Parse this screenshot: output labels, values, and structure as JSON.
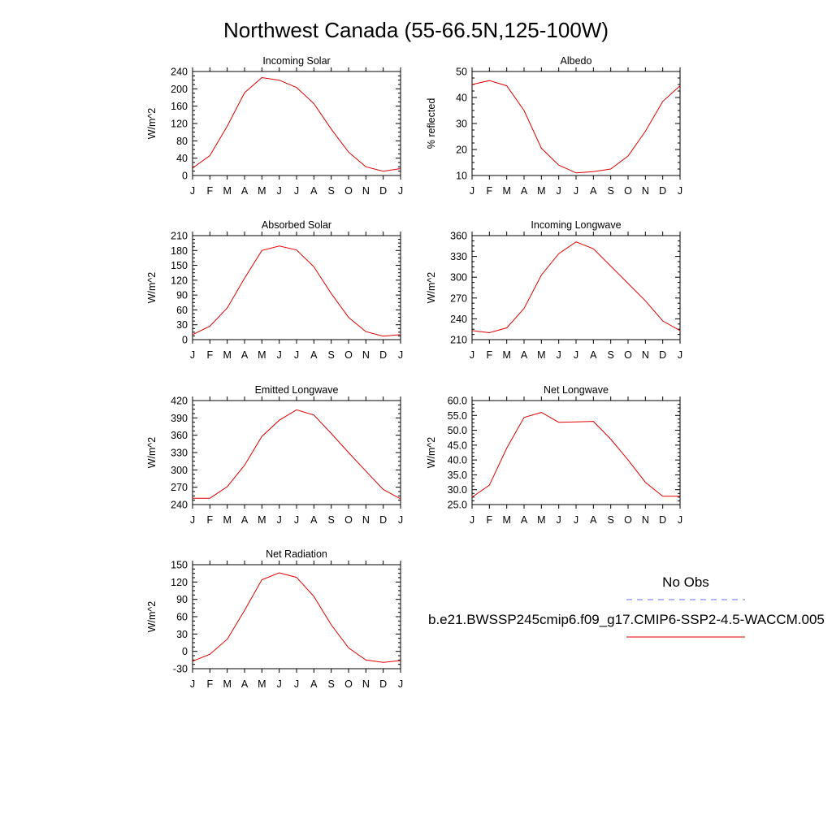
{
  "page_title": "Northwest Canada (55-66.5N,125-100W)",
  "legend": {
    "obs_label": "No Obs",
    "model_label": "b.e21.BWSSP245cmip6.f09_g17.CMIP6-SSP2-4.5-WACCM.005",
    "obs_color": "#6a6af0",
    "model_color": "#e00000"
  },
  "chart_data": [
    {
      "type": "line",
      "title": "Incoming Solar",
      "ylabel": "W/m^2",
      "ylim": [
        0,
        240
      ],
      "yticks": [
        0,
        40,
        80,
        120,
        160,
        200,
        240
      ],
      "ytick_labels": [
        "0",
        "40",
        "80",
        "120",
        "160",
        "200",
        "240"
      ],
      "categories": [
        "J",
        "F",
        "M",
        "A",
        "M",
        "J",
        "J",
        "A",
        "S",
        "O",
        "N",
        "D",
        "J"
      ],
      "series": [
        {
          "values": [
            17,
            46,
            114,
            191,
            226,
            220,
            203,
            166,
            107,
            54,
            20,
            10,
            16
          ]
        }
      ]
    },
    {
      "type": "line",
      "title": "Albedo",
      "ylabel": "% reflected",
      "ylim": [
        10,
        50
      ],
      "yticks": [
        10,
        20,
        30,
        40,
        50
      ],
      "ytick_labels": [
        "10",
        "20",
        "30",
        "40",
        "50"
      ],
      "categories": [
        "J",
        "F",
        "M",
        "A",
        "M",
        "J",
        "J",
        "A",
        "S",
        "O",
        "N",
        "D",
        "J"
      ],
      "series": [
        {
          "values": [
            45,
            46.5,
            44.5,
            35,
            20.5,
            14,
            11,
            11.5,
            12.5,
            17.5,
            27,
            38.5,
            44.5
          ]
        }
      ]
    },
    {
      "type": "line",
      "title": "Absorbed Solar",
      "ylabel": "W/m^2",
      "ylim": [
        0,
        210
      ],
      "yticks": [
        0,
        30,
        60,
        90,
        120,
        150,
        180,
        210
      ],
      "ytick_labels": [
        "0",
        "30",
        "60",
        "90",
        "120",
        "150",
        "180",
        "210"
      ],
      "categories": [
        "J",
        "F",
        "M",
        "A",
        "M",
        "J",
        "J",
        "A",
        "S",
        "O",
        "N",
        "D",
        "J"
      ],
      "series": [
        {
          "values": [
            10,
            27,
            64,
            124,
            180,
            189,
            181,
            147,
            93,
            45,
            16,
            7,
            10
          ]
        }
      ]
    },
    {
      "type": "line",
      "title": "Incoming Longwave",
      "ylabel": "W/m^2",
      "ylim": [
        210,
        360
      ],
      "yticks": [
        210,
        240,
        270,
        300,
        330,
        360
      ],
      "ytick_labels": [
        "210",
        "240",
        "270",
        "300",
        "330",
        "360"
      ],
      "categories": [
        "J",
        "F",
        "M",
        "A",
        "M",
        "J",
        "J",
        "A",
        "S",
        "O",
        "N",
        "D",
        "J"
      ],
      "series": [
        {
          "values": [
            223,
            220,
            227,
            255,
            303,
            334,
            351,
            341,
            316,
            291,
            266,
            237,
            223
          ]
        }
      ]
    },
    {
      "type": "line",
      "title": "Emitted Longwave",
      "ylabel": "W/m^2",
      "ylim": [
        240,
        420
      ],
      "yticks": [
        240,
        270,
        300,
        330,
        360,
        390,
        420
      ],
      "ytick_labels": [
        "240",
        "270",
        "300",
        "330",
        "360",
        "390",
        "420"
      ],
      "categories": [
        "J",
        "F",
        "M",
        "A",
        "M",
        "J",
        "J",
        "A",
        "S",
        "O",
        "N",
        "D",
        "J"
      ],
      "series": [
        {
          "values": [
            251,
            251,
            271,
            308,
            358,
            386,
            404,
            395,
            363,
            330,
            298,
            266,
            250
          ]
        }
      ]
    },
    {
      "type": "line",
      "title": "Net Longwave",
      "ylabel": "W/m^2",
      "ylim": [
        25,
        60
      ],
      "yticks": [
        25,
        30,
        35,
        40,
        45,
        50,
        55,
        60
      ],
      "ytick_labels": [
        "25.0",
        "30.0",
        "35.0",
        "40.0",
        "45.0",
        "50.0",
        "55.0",
        "60.0"
      ],
      "categories": [
        "J",
        "F",
        "M",
        "A",
        "M",
        "J",
        "J",
        "A",
        "S",
        "O",
        "N",
        "D",
        "J"
      ],
      "series": [
        {
          "values": [
            27.5,
            31.5,
            44,
            54.3,
            56,
            52.7,
            52.8,
            53,
            47,
            40,
            32.5,
            27.8,
            27.8
          ]
        }
      ]
    },
    {
      "type": "line",
      "title": "Net Radiation",
      "ylabel": "W/m^2",
      "ylim": [
        -30,
        150
      ],
      "yticks": [
        -30,
        0,
        30,
        60,
        90,
        120,
        150
      ],
      "ytick_labels": [
        "-30",
        "0",
        "30",
        "60",
        "90",
        "120",
        "150"
      ],
      "categories": [
        "J",
        "F",
        "M",
        "A",
        "M",
        "J",
        "J",
        "A",
        "S",
        "O",
        "N",
        "D",
        "J"
      ],
      "series": [
        {
          "values": [
            -17,
            -5,
            21,
            71,
            124,
            136,
            128,
            95,
            46,
            6,
            -15,
            -19,
            -16
          ]
        }
      ]
    }
  ]
}
